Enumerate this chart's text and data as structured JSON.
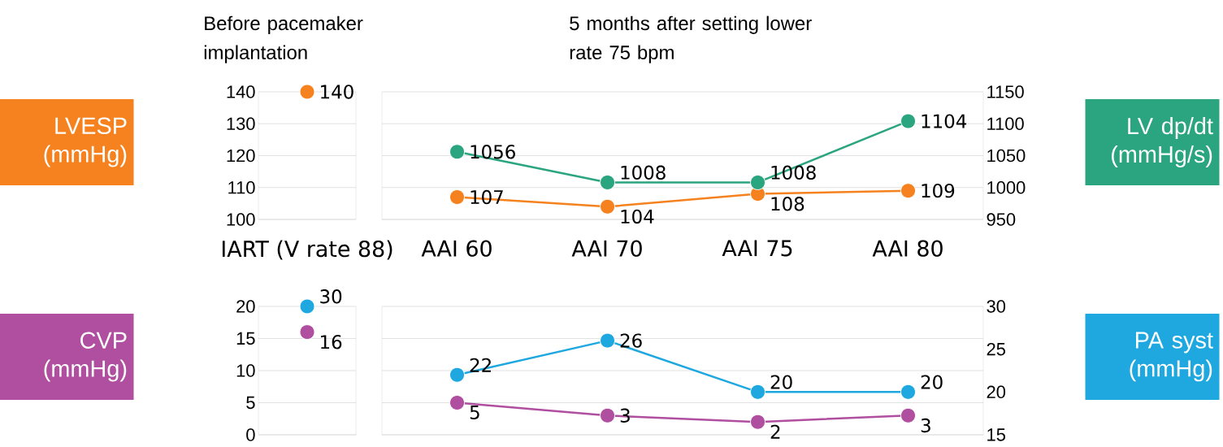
{
  "chart_data": [
    {
      "type": "line",
      "annotations": [
        "Before pacemaker implantation",
        "5 months after setting lower rate 75 bpm"
      ],
      "ylabel": "LVESP (mmHg)",
      "y2label": "LV dp/dt (mmHg/s)",
      "categories": [
        "IART (V rate 88)",
        "AAI 60",
        "AAI 70",
        "AAI 75",
        "AAI 80"
      ],
      "series": [
        {
          "type": "scatter",
          "color": "#f5821f",
          "values": [
            140,
            null,
            null,
            null,
            null
          ]
        },
        {
          "color": "#f5821f",
          "values": [
            null,
            107,
            104,
            108,
            109
          ]
        },
        {
          "color": "#2ba57f",
          "values": [
            null,
            1056,
            1008,
            1008,
            1104
          ],
          "axis": "y2"
        }
      ],
      "ylim": [
        100,
        140
      ],
      "yticks": [
        100,
        110,
        120,
        130,
        140
      ],
      "y2lim": [
        950,
        1150
      ],
      "y2ticks": [
        950,
        1000,
        1050,
        1100,
        1150
      ],
      "data_labels": true,
      "grid": "y",
      "marker": "circle",
      "line_style": "solid"
    },
    {
      "type": "line",
      "ylabel": "CVP (mmHg)",
      "y2label": "PA syst (mmHg)",
      "categories": [
        null,
        null,
        null,
        null,
        null
      ],
      "series": [
        {
          "type": "scatter",
          "color": "#b04fa0",
          "values": [
            16,
            null,
            null,
            null,
            null
          ]
        },
        {
          "type": "scatter",
          "color": "#1fa8e0",
          "values": [
            30,
            null,
            null,
            null,
            null
          ],
          "axis": "y2"
        },
        {
          "color": "#b04fa0",
          "values": [
            null,
            5,
            3,
            2,
            3
          ]
        },
        {
          "color": "#1fa8e0",
          "values": [
            null,
            22,
            26,
            20,
            20
          ],
          "axis": "y2"
        }
      ],
      "ylim": [
        0,
        20
      ],
      "yticks": [
        0,
        5,
        10,
        15,
        20
      ],
      "y2lim": [
        15,
        30
      ],
      "y2ticks": [
        15,
        20,
        25,
        30
      ],
      "tick_labels": "y",
      "data_labels": true,
      "grid": "y",
      "marker": "circle",
      "line_style": "solid"
    }
  ]
}
